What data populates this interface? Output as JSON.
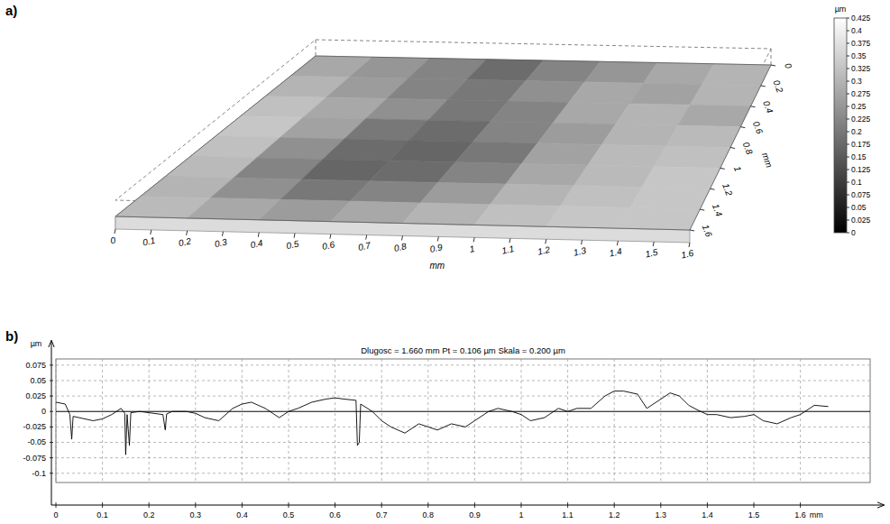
{
  "chart_data": [
    {
      "type": "surface",
      "label": "a)",
      "xlabel": "mm",
      "ylabel": "mm",
      "xlim": [
        0,
        1.6
      ],
      "ylim": [
        0,
        1.6
      ],
      "xticks": [
        0,
        0.1,
        0.2,
        0.3,
        0.4,
        0.5,
        0.6,
        0.7,
        0.8,
        0.9,
        1,
        1.1,
        1.2,
        1.3,
        1.4,
        1.5,
        1.6
      ],
      "yticks": [
        0,
        0.2,
        0.4,
        0.6,
        0.8,
        1,
        1.2,
        1.4,
        1.6
      ],
      "cells": [
        [
          0.28,
          0.25,
          0.22,
          0.18,
          0.22,
          0.25,
          0.28,
          0.3
        ],
        [
          0.3,
          0.26,
          0.22,
          0.2,
          0.24,
          0.28,
          0.27,
          0.3
        ],
        [
          0.32,
          0.28,
          0.24,
          0.2,
          0.22,
          0.28,
          0.3,
          0.28
        ],
        [
          0.33,
          0.27,
          0.2,
          0.18,
          0.22,
          0.26,
          0.3,
          0.31
        ],
        [
          0.32,
          0.24,
          0.18,
          0.17,
          0.2,
          0.27,
          0.31,
          0.32
        ],
        [
          0.31,
          0.22,
          0.17,
          0.18,
          0.22,
          0.28,
          0.31,
          0.33
        ],
        [
          0.3,
          0.24,
          0.2,
          0.22,
          0.26,
          0.3,
          0.32,
          0.33
        ],
        [
          0.31,
          0.28,
          0.26,
          0.28,
          0.3,
          0.32,
          0.33,
          0.33
        ]
      ],
      "colorbar_label": "µm",
      "colorbar_range": [
        0,
        0.425
      ],
      "colorbar_ticks": [
        0,
        0.025,
        0.05,
        0.075,
        0.1,
        0.125,
        0.15,
        0.175,
        0.2,
        0.225,
        0.25,
        0.275,
        0.3,
        0.325,
        0.35,
        0.375,
        0.4,
        0.425
      ]
    },
    {
      "type": "line",
      "label": "b)",
      "title": "Dlugosc = 1.660 mm  Pt = 0.106 µm  Skala = 0.200 µm",
      "xlabel": "mm",
      "ylabel": "µm",
      "xlim": [
        0,
        1.75
      ],
      "ylim": [
        -0.115,
        0.085
      ],
      "xticks": [
        0,
        0.1,
        0.2,
        0.3,
        0.4,
        0.5,
        0.6,
        0.7,
        0.8,
        0.9,
        1,
        1.1,
        1.2,
        1.3,
        1.4,
        1.5,
        1.6
      ],
      "yticks": [
        -0.1,
        -0.075,
        -0.05,
        -0.025,
        0,
        0.025,
        0.05,
        0.075
      ],
      "grid": true,
      "color": "#000000",
      "x": [
        0,
        0.02,
        0.03,
        0.034,
        0.037,
        0.05,
        0.08,
        0.1,
        0.12,
        0.14,
        0.148,
        0.15,
        0.153,
        0.158,
        0.161,
        0.18,
        0.2,
        0.23,
        0.235,
        0.238,
        0.25,
        0.28,
        0.3,
        0.32,
        0.35,
        0.38,
        0.4,
        0.42,
        0.45,
        0.48,
        0.5,
        0.52,
        0.55,
        0.58,
        0.6,
        0.62,
        0.645,
        0.648,
        0.652,
        0.655,
        0.68,
        0.7,
        0.72,
        0.75,
        0.78,
        0.8,
        0.82,
        0.85,
        0.88,
        0.9,
        0.93,
        0.95,
        0.98,
        1.0,
        1.02,
        1.05,
        1.08,
        1.1,
        1.12,
        1.15,
        1.18,
        1.2,
        1.22,
        1.25,
        1.27,
        1.3,
        1.32,
        1.34,
        1.36,
        1.38,
        1.4,
        1.42,
        1.45,
        1.48,
        1.5,
        1.52,
        1.55,
        1.58,
        1.6,
        1.63,
        1.66
      ],
      "values": [
        0.015,
        0.012,
        -0.005,
        -0.045,
        -0.008,
        -0.01,
        -0.015,
        -0.012,
        -0.005,
        0.005,
        -0.003,
        -0.07,
        -0.005,
        -0.055,
        -0.002,
        0,
        -0.002,
        -0.005,
        -0.03,
        -0.004,
        0,
        0,
        -0.003,
        -0.01,
        -0.015,
        0.005,
        0.012,
        0.015,
        0.005,
        -0.01,
        0,
        0.005,
        0.015,
        0.02,
        0.022,
        0.02,
        0.018,
        -0.055,
        -0.05,
        0.012,
        0,
        -0.015,
        -0.025,
        -0.035,
        -0.02,
        -0.025,
        -0.03,
        -0.02,
        -0.025,
        -0.015,
        0,
        0.005,
        0,
        -0.005,
        -0.015,
        -0.01,
        0.005,
        0,
        0.005,
        0.005,
        0.025,
        0.033,
        0.033,
        0.028,
        0.005,
        0.02,
        0.03,
        0.025,
        0.01,
        0.002,
        -0.005,
        -0.005,
        -0.01,
        -0.008,
        -0.005,
        -0.015,
        -0.02,
        -0.01,
        -0.005,
        0.01,
        0.008
      ]
    }
  ]
}
